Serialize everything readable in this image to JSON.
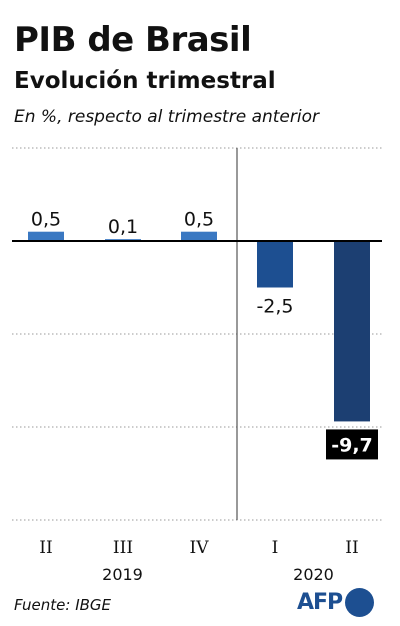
{
  "header": {
    "title": "PIB de Brasil",
    "subtitle": "Evolución trimestral",
    "unit_note": "En %, respecto al trimestre anterior"
  },
  "chart_data": {
    "type": "bar",
    "categories": [
      "II",
      "III",
      "IV",
      "I",
      "II"
    ],
    "years": [
      {
        "label": "2019",
        "categories": [
          0,
          1,
          2
        ]
      },
      {
        "label": "2020",
        "categories": [
          3,
          4
        ]
      }
    ],
    "values": [
      0.5,
      0.1,
      0.5,
      -2.5,
      -9.7
    ],
    "value_labels": [
      "0,5",
      "0,1",
      "0,5",
      "-2,5",
      "-9,7"
    ],
    "highlight_index": 4,
    "colors": {
      "positive": "#3a78c2",
      "negative_2020_q1": "#1d4f91",
      "negative_2020_q2": "#1c3f72",
      "highlight_label_bg": "#000000",
      "highlight_label_text": "#ffffff",
      "gridline": "#9a9a9a"
    },
    "ylim": [
      -15,
      5
    ],
    "grid": true,
    "title": "",
    "xlabel": "",
    "ylabel": ""
  },
  "footer": {
    "source": "Fuente: IBGE",
    "logo_text": "AFP"
  }
}
